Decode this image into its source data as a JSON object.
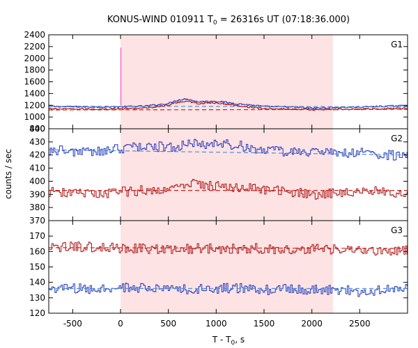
{
  "chart_data": {
    "type": "line",
    "title": "KONUS-WIND 010911 T",
    "title_sub": "0",
    "title_tail": " = 26316s UT (07:18:36.000)",
    "xlabel": "T - T",
    "xlabel_sub": "0",
    "xlabel_tail": ", s",
    "ylabel": "counts / sec",
    "xlim": [
      -750,
      3000
    ],
    "xticks": [
      -500,
      0,
      500,
      1000,
      1500,
      2000,
      2500
    ],
    "shaded_region": [
      0,
      2220
    ],
    "colors": {
      "blue_series": "#2233bb",
      "red_series": "#aa1111",
      "fit_blue": "#4a90d9",
      "fit_red": "#cc2222",
      "spike": "#ff66cc",
      "shade": "#fde3e3"
    },
    "panels": [
      {
        "label": "G1",
        "ylim": [
          800,
          2400
        ],
        "yticks": [
          1000,
          1200,
          1400,
          1600,
          1800,
          2000,
          2200,
          2400
        ],
        "ytick_labels": [
          "1000",
          "1200",
          "1400",
          "1600",
          "1800",
          "2000",
          "2200",
          "2400"
        ],
        "bottom_tick": "800",
        "spike": {
          "x": 0,
          "y_from": 1200,
          "y_to": 2180
        },
        "series": [
          {
            "color_key": "blue_series",
            "fit_key": "fit_blue",
            "x": [
              -750,
              -500,
              -250,
              0,
              250,
              500,
              600,
              700,
              800,
              1000,
              1200,
              1500,
              1800,
              2000,
              2200,
              2500,
              2800,
              3000
            ],
            "y": [
              1180,
              1175,
              1170,
              1175,
              1185,
              1230,
              1290,
              1310,
              1260,
              1270,
              1230,
              1180,
              1170,
              1150,
              1160,
              1170,
              1185,
              1195
            ],
            "fit": [
              1185,
              1175
            ]
          },
          {
            "color_key": "red_series",
            "fit_key": "fit_red",
            "x": [
              -750,
              -500,
              -250,
              0,
              250,
              500,
              600,
              700,
              800,
              1000,
              1200,
              1500,
              1800,
              2000,
              2200,
              2500,
              2800,
              3000
            ],
            "y": [
              1140,
              1135,
              1135,
              1140,
              1150,
              1200,
              1250,
              1275,
              1230,
              1240,
              1200,
              1140,
              1135,
              1125,
              1130,
              1135,
              1145,
              1150
            ],
            "fit": [
              1120,
              1130
            ]
          }
        ]
      },
      {
        "label": "G2",
        "ylim": [
          370,
          440
        ],
        "yticks": [
          370,
          380,
          390,
          400,
          410,
          420,
          430,
          440
        ],
        "ytick_labels": [
          "370",
          "380",
          "390",
          "400",
          "410",
          "420",
          "430",
          "440"
        ],
        "series": [
          {
            "color_key": "blue_series",
            "fit_key": "fit_blue",
            "x": [
              -750,
              -500,
              -250,
              0,
              250,
              500,
              750,
              1000,
              1250,
              1500,
              1750,
              2000,
              2250,
              2500,
              2750,
              3000
            ],
            "y": [
              424,
              423,
              422,
              425,
              427,
              426,
              428,
              429,
              427,
              424,
              422,
              423,
              421,
              422,
              420,
              419
            ],
            "fit": [
              424,
              420
            ]
          },
          {
            "color_key": "red_series",
            "fit_key": "fit_red",
            "x": [
              -750,
              -500,
              -250,
              0,
              250,
              500,
              750,
              1000,
              1250,
              1500,
              1750,
              2000,
              2250,
              2500,
              2750,
              3000
            ],
            "y": [
              392,
              391,
              390,
              392,
              393,
              394,
              398,
              397,
              395,
              394,
              392,
              390,
              391,
              393,
              392,
              391
            ],
            "fit": [
              393,
              393
            ]
          }
        ]
      },
      {
        "label": "G3",
        "ylim": [
          120,
          180
        ],
        "yticks": [
          120,
          130,
          140,
          150,
          160,
          170
        ],
        "ytick_labels": [
          "120",
          "130",
          "140",
          "150",
          "160",
          "170"
        ],
        "series": [
          {
            "color_key": "red_series",
            "fit_key": "fit_red",
            "x": [
              -750,
              -500,
              -250,
              0,
              250,
              500,
              750,
              1000,
              1250,
              1500,
              1750,
              2000,
              2250,
              2500,
              2750,
              3000
            ],
            "y": [
              162,
              163,
              163,
              162,
              162,
              161,
              162,
              162,
              162,
              162,
              161,
              162,
              161,
              161,
              160,
              161
            ],
            "fit": [
              162.5,
              162
            ]
          },
          {
            "color_key": "blue_series",
            "fit_key": "fit_blue",
            "x": [
              -750,
              -500,
              -250,
              0,
              250,
              500,
              750,
              1000,
              1250,
              1500,
              1750,
              2000,
              2250,
              2500,
              2750,
              3000
            ],
            "y": [
              136,
              136,
              135,
              137,
              136,
              136,
              135,
              136,
              136,
              135,
              136,
              135,
              135,
              134,
              135,
              136
            ],
            "fit": [
              136,
              136
            ]
          }
        ]
      }
    ]
  }
}
